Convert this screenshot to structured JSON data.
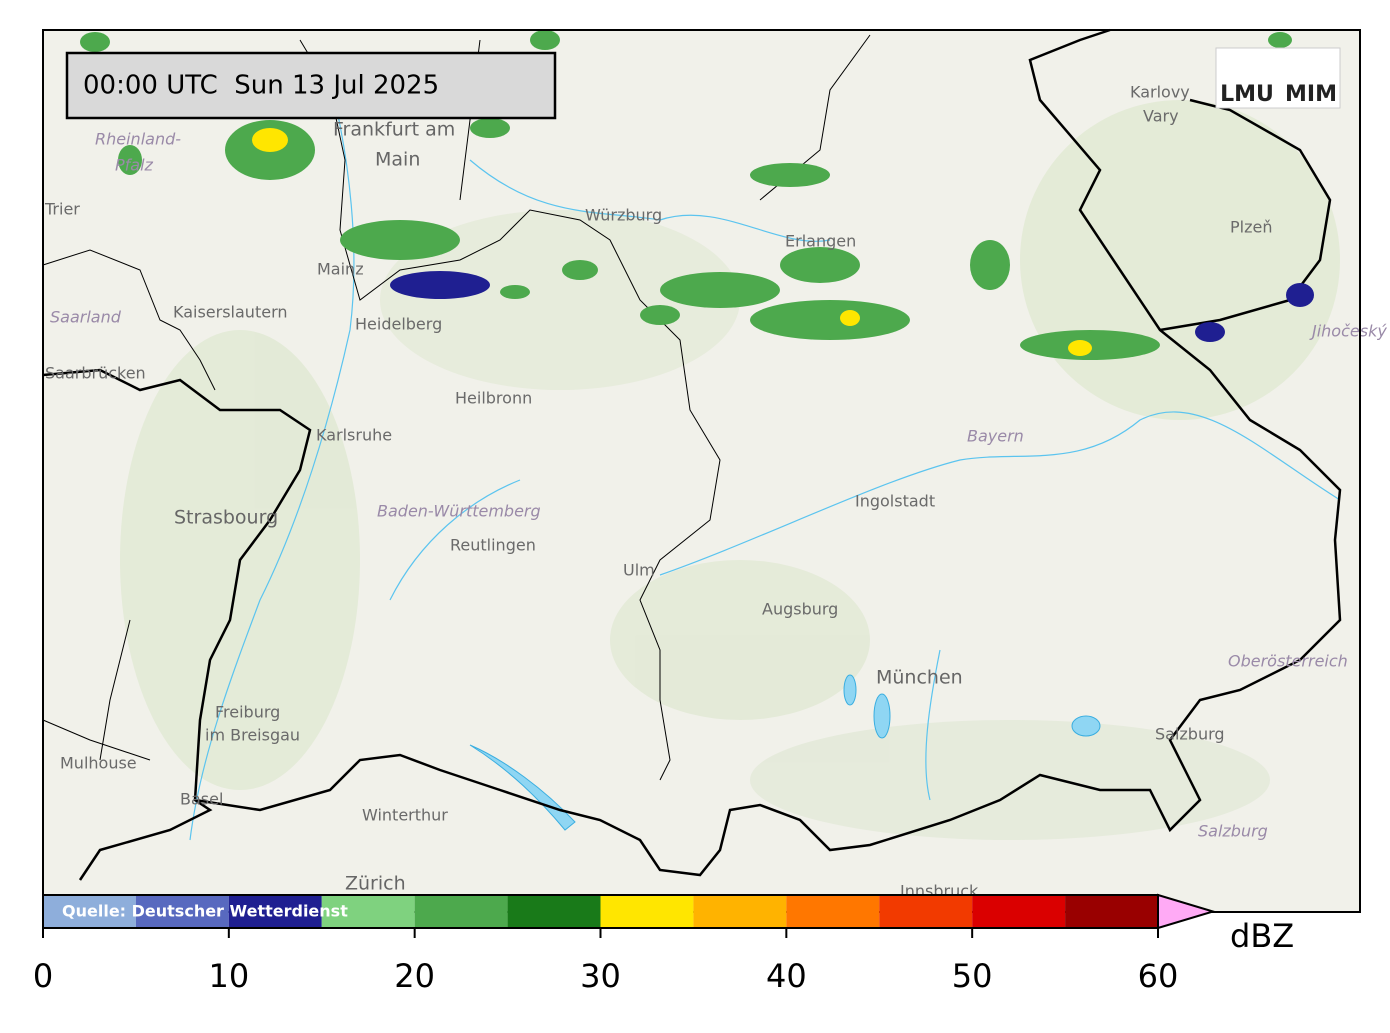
{
  "timestamp": "00:00 UTC  Sun 13 Jul 2025",
  "logo": [
    "LMU",
    "MIM"
  ],
  "places": [
    "Frankfurt am",
    "Main",
    "Rheinland-",
    "Pfalz",
    "Trier",
    "Mainz",
    "Kaiserslautern",
    "Heidelberg",
    "Saarland",
    "Saarbrücken",
    "Karlsruhe",
    "Heilbronn",
    "Würzburg",
    "Erlangen",
    "Karlovy",
    "Vary",
    "Plzeň",
    "Jihočeský",
    "Bayern",
    "Ingolstadt",
    "Strasbourg",
    "Baden-Württemberg",
    "Reutlingen",
    "Ulm",
    "Augsburg",
    "München",
    "Oberösterreich",
    "Freiburg",
    "im Breisgau",
    "Mulhouse",
    "Basel",
    "Winterthur",
    "Zürich",
    "Salzburg",
    "Salzburg",
    "Innsbruck"
  ],
  "colorbar": {
    "source": "Quelle: Deutscher Wetterdienst",
    "unit": "dBZ",
    "bounds": [
      0,
      5,
      10,
      15,
      20,
      25,
      30,
      35,
      40,
      45,
      50,
      55,
      60
    ],
    "colors": [
      "#8eaedb",
      "#5869bf",
      "#1f1f91",
      "#7fd27f",
      "#4da94d",
      "#197a19",
      "#ffe600",
      "#ffb300",
      "#ff7700",
      "#f23a00",
      "#da0000",
      "#990000"
    ],
    "extend_color": "#ffaaf5",
    "ticks": [
      0,
      10,
      20,
      30,
      40,
      50,
      60
    ]
  }
}
